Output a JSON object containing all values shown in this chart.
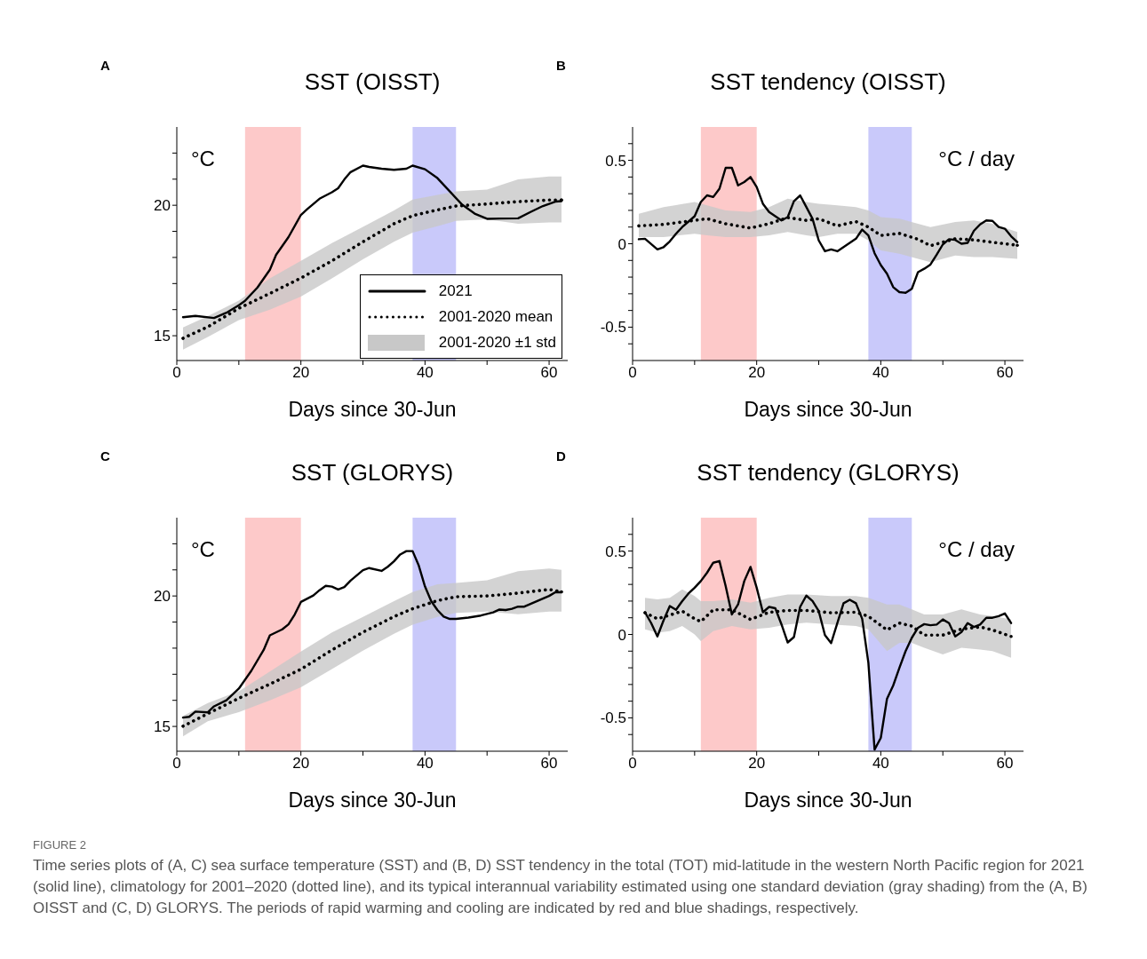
{
  "chart_data": [
    {
      "type": "line",
      "title": "SST (OISST)",
      "xlabel": "Days since 30-Jun",
      "annotations": [
        "A",
        "°C",
        "2001-2020 ±1 std"
      ],
      "legend": "bottom right",
      "xlim": [
        0,
        63
      ],
      "xticks": [
        0,
        {
          "value": 10,
          "label": null
        },
        20,
        {
          "value": 30,
          "label": null
        },
        40,
        {
          "value": 50,
          "label": null
        },
        60
      ],
      "ylim": [
        14.05,
        23
      ],
      "yticks": [
        15,
        {
          "value": 16,
          "label": null
        },
        {
          "value": 17,
          "label": null
        },
        {
          "value": 18,
          "label": null
        },
        {
          "value": 19,
          "label": null
        },
        20,
        {
          "value": 21,
          "label": null
        },
        {
          "value": 22,
          "label": null
        }
      ],
      "bands": [
        {
          "axis": "x",
          "from": 11,
          "to": 20,
          "color": "#fdc9c9"
        },
        {
          "axis": "x",
          "from": 38,
          "to": 45,
          "color": "#c9c9fa"
        }
      ],
      "series": [
        {
          "name": "2021",
          "color": "#000000",
          "line_style": "solid",
          "x": [
            1,
            3,
            6,
            8,
            10,
            11,
            13,
            15,
            16,
            18,
            20,
            21,
            23,
            25,
            26,
            27,
            28,
            30,
            31,
            33,
            35,
            37,
            38,
            40,
            42,
            44,
            46,
            48,
            50,
            52,
            55,
            57,
            59,
            61,
            62
          ],
          "values": [
            15.71,
            15.76,
            15.68,
            15.88,
            16.17,
            16.34,
            16.85,
            17.53,
            18.1,
            18.78,
            19.63,
            19.85,
            20.25,
            20.5,
            20.65,
            20.99,
            21.27,
            21.52,
            21.47,
            21.4,
            21.36,
            21.4,
            21.52,
            21.38,
            21.04,
            20.53,
            20.02,
            19.68,
            19.48,
            19.49,
            19.5,
            19.74,
            19.97,
            20.14,
            20.16
          ]
        },
        {
          "name": "2001-2020 mean",
          "color": "#000000",
          "line_style": "dotted",
          "x": [
            1,
            5,
            10,
            15,
            20,
            25,
            30,
            35,
            38,
            42,
            45,
            50,
            55,
            60,
            62
          ],
          "values": [
            14.9,
            15.34,
            16.05,
            16.62,
            17.21,
            17.87,
            18.6,
            19.29,
            19.6,
            19.82,
            19.97,
            20.05,
            20.14,
            20.2,
            20.2
          ],
          "lower": [
            14.47,
            14.95,
            15.6,
            16.0,
            16.5,
            17.2,
            17.93,
            18.6,
            18.95,
            19.2,
            19.4,
            19.46,
            19.29,
            19.34,
            19.34
          ],
          "upper": [
            15.32,
            15.75,
            16.35,
            17.2,
            17.87,
            18.55,
            19.17,
            19.8,
            20.22,
            20.4,
            20.53,
            20.6,
            20.99,
            21.1,
            21.1
          ]
        }
      ]
    },
    {
      "type": "line",
      "title": "SST tendency (OISST)",
      "xlabel": "Days since 30-Jun",
      "annotations": [
        "B",
        "°C / day"
      ],
      "xlim": [
        0,
        63
      ],
      "xticks": [
        0,
        {
          "value": 10,
          "label": null
        },
        20,
        {
          "value": 30,
          "label": null
        },
        40,
        {
          "value": 50,
          "label": null
        },
        60
      ],
      "ylim": [
        -0.7,
        0.7
      ],
      "yticks": [
        {
          "value": -0.6,
          "label": null
        },
        -0.5,
        {
          "value": -0.4,
          "label": null
        },
        {
          "value": -0.3,
          "label": null
        },
        {
          "value": -0.2,
          "label": null
        },
        {
          "value": -0.1,
          "label": null
        },
        0,
        {
          "value": 0.1,
          "label": null
        },
        {
          "value": 0.2,
          "label": null
        },
        {
          "value": 0.3,
          "label": null
        },
        {
          "value": 0.4,
          "label": null
        },
        0.5,
        {
          "value": 0.6,
          "label": null
        }
      ],
      "bands": [
        {
          "axis": "x",
          "from": 11,
          "to": 20,
          "color": "#fdc9c9"
        },
        {
          "axis": "x",
          "from": 38,
          "to": 45,
          "color": "#c9c9fa"
        }
      ],
      "series": [
        {
          "color": "#000000",
          "line_style": "solid",
          "x": [
            1,
            2,
            4,
            5,
            6,
            7,
            8,
            10,
            11,
            12,
            13,
            14,
            15,
            16,
            17,
            18,
            19,
            20,
            21,
            22,
            23,
            24,
            25,
            26,
            27,
            28,
            29,
            30,
            31,
            32,
            33,
            34,
            35,
            36,
            37,
            38,
            39,
            40,
            41,
            42,
            43,
            44,
            45,
            46,
            47,
            48,
            49,
            50,
            51,
            52,
            53,
            54,
            55,
            56,
            57,
            58,
            59,
            60,
            61,
            62
          ],
          "values": [
            0.027,
            0.03,
            -0.034,
            -0.02,
            0.014,
            0.06,
            0.1,
            0.165,
            0.25,
            0.29,
            0.28,
            0.33,
            0.455,
            0.455,
            0.35,
            0.37,
            0.4,
            0.34,
            0.24,
            0.19,
            0.165,
            0.14,
            0.16,
            0.255,
            0.29,
            0.22,
            0.15,
            0.02,
            -0.045,
            -0.034,
            -0.045,
            -0.02,
            0.005,
            0.03,
            0.085,
            0.05,
            -0.057,
            -0.128,
            -0.18,
            -0.26,
            -0.29,
            -0.294,
            -0.27,
            -0.17,
            -0.15,
            -0.125,
            -0.066,
            -0.004,
            0.027,
            0.023,
            0,
            0.005,
            0.077,
            0.116,
            0.14,
            0.137,
            0.1,
            0.09,
            0.045,
            0.01
          ]
        },
        {
          "color": "#000000",
          "line_style": "dotted",
          "x": [
            1,
            5,
            10,
            12,
            15,
            19,
            22,
            25,
            28,
            30,
            33,
            36,
            38,
            40,
            43,
            46,
            48,
            52,
            55,
            58,
            62
          ],
          "values": [
            0.107,
            0.116,
            0.14,
            0.15,
            0.12,
            0.094,
            0.12,
            0.157,
            0.14,
            0.15,
            0.107,
            0.133,
            0.1,
            0.05,
            0.062,
            0.027,
            -0.012,
            0.03,
            0.023,
            0.009,
            -0.009
          ],
          "lower": [
            0.04,
            0.04,
            0.06,
            0.05,
            0.04,
            0.04,
            0.05,
            0.07,
            0.05,
            0.04,
            0.06,
            0.06,
            0.02,
            -0.04,
            -0.06,
            -0.09,
            -0.11,
            -0.07,
            -0.08,
            -0.08,
            -0.09
          ],
          "upper": [
            0.18,
            0.22,
            0.25,
            0.23,
            0.2,
            0.19,
            0.22,
            0.27,
            0.25,
            0.24,
            0.23,
            0.22,
            0.2,
            0.16,
            0.15,
            0.12,
            0.1,
            0.13,
            0.14,
            0.12,
            0.07
          ]
        }
      ]
    },
    {
      "type": "line",
      "title": "SST (GLORYS)",
      "xlabel": "Days since 30-Jun",
      "annotations": [
        "C",
        "°C"
      ],
      "xlim": [
        0,
        63
      ],
      "xticks": [
        0,
        {
          "value": 10,
          "label": null
        },
        20,
        {
          "value": 30,
          "label": null
        },
        40,
        {
          "value": 50,
          "label": null
        },
        60
      ],
      "ylim": [
        14.05,
        23
      ],
      "yticks": [
        15,
        {
          "value": 16,
          "label": null
        },
        {
          "value": 17,
          "label": null
        },
        {
          "value": 18,
          "label": null
        },
        {
          "value": 19,
          "label": null
        },
        20,
        {
          "value": 21,
          "label": null
        },
        {
          "value": 22,
          "label": null
        }
      ],
      "bands": [
        {
          "axis": "x",
          "from": 11,
          "to": 20,
          "color": "#fdc9c9"
        },
        {
          "axis": "x",
          "from": 38,
          "to": 45,
          "color": "#c9c9fa"
        }
      ],
      "series": [
        {
          "color": "#000000",
          "line_style": "solid",
          "x": [
            1,
            2,
            3,
            5,
            6,
            8,
            10,
            12,
            14,
            15,
            17,
            18,
            19,
            20,
            22,
            23,
            24,
            25,
            26,
            27,
            28,
            30,
            31,
            33,
            34,
            35,
            36,
            37,
            38,
            39,
            40,
            41,
            42,
            43,
            44,
            45,
            47,
            49,
            51,
            52,
            53,
            54,
            55,
            56,
            58,
            60,
            61,
            62
          ],
          "values": [
            15.34,
            15.37,
            15.57,
            15.54,
            15.77,
            16.0,
            16.45,
            17.13,
            17.93,
            18.49,
            18.72,
            18.91,
            19.29,
            19.77,
            20.02,
            20.22,
            20.39,
            20.36,
            20.25,
            20.34,
            20.59,
            20.99,
            21.07,
            20.96,
            21.12,
            21.33,
            21.59,
            21.72,
            21.72,
            21.16,
            20.36,
            19.8,
            19.46,
            19.21,
            19.12,
            19.12,
            19.17,
            19.25,
            19.37,
            19.48,
            19.46,
            19.51,
            19.59,
            19.59,
            19.8,
            20.0,
            20.14,
            20.14
          ]
        },
        {
          "color": "#000000",
          "line_style": "dotted",
          "x": [
            1,
            5,
            10,
            15,
            20,
            25,
            30,
            35,
            38,
            42,
            45,
            50,
            55,
            60,
            62
          ],
          "values": [
            15.01,
            15.49,
            16.08,
            16.62,
            17.19,
            17.93,
            18.61,
            19.21,
            19.51,
            19.82,
            19.97,
            20.0,
            20.11,
            20.25,
            20.16
          ],
          "lower": [
            14.62,
            15.2,
            15.55,
            16.0,
            16.5,
            17.2,
            17.9,
            18.55,
            18.9,
            19.2,
            19.35,
            19.4,
            19.3,
            19.4,
            19.4
          ],
          "upper": [
            15.4,
            15.9,
            16.35,
            17.1,
            17.87,
            18.6,
            19.2,
            19.8,
            20.15,
            20.45,
            20.5,
            20.6,
            20.95,
            21.05,
            21.0
          ]
        }
      ]
    },
    {
      "type": "line",
      "title": "SST tendency (GLORYS)",
      "xlabel": "Days since 30-Jun",
      "annotations": [
        "D",
        "°C / day",
        "FIGURE 2",
        "Time series plots of (A, C) sea surface temperature (SST) and (B, D) SST tendency in the total (TOT) mid-latitude in the western North Pacific region for 2021 (solid line), climatology for 2001–2020 (dotted line), and its typical interannual variability estimated using one standard deviation (gray shading) from the (A, B) OISST and (C, D) GLORYS. The periods of rapid warming and cooling are indicated by red and blue shadings, respectively."
      ],
      "xlim": [
        0,
        63
      ],
      "xticks": [
        0,
        {
          "value": 10,
          "label": null
        },
        20,
        {
          "value": 30,
          "label": null
        },
        40,
        {
          "value": 50,
          "label": null
        },
        60
      ],
      "ylim": [
        -0.7,
        0.7
      ],
      "yticks": [
        {
          "value": -0.6,
          "label": null
        },
        -0.5,
        {
          "value": -0.4,
          "label": null
        },
        {
          "value": -0.3,
          "label": null
        },
        {
          "value": -0.2,
          "label": null
        },
        {
          "value": -0.1,
          "label": null
        },
        0,
        {
          "value": 0.1,
          "label": null
        },
        {
          "value": 0.2,
          "label": null
        },
        {
          "value": 0.3,
          "label": null
        },
        {
          "value": 0.4,
          "label": null
        },
        0.5,
        {
          "value": 0.6,
          "label": null
        }
      ],
      "bands": [
        {
          "axis": "x",
          "from": 11,
          "to": 20,
          "color": "#fdc9c9"
        },
        {
          "axis": "x",
          "from": 38,
          "to": 45,
          "color": "#c9c9fa"
        }
      ],
      "series": [
        {
          "color": "#000000",
          "line_style": "solid",
          "x": [
            2,
            3,
            4,
            5,
            6,
            7,
            8,
            9,
            10,
            11,
            12,
            13,
            14,
            15,
            16,
            17,
            18,
            19,
            20,
            21,
            22,
            23,
            24,
            25,
            26,
            27,
            28,
            29,
            30,
            31,
            32,
            33,
            34,
            35,
            36,
            37,
            38,
            39,
            40,
            41,
            42,
            43,
            44,
            45,
            46,
            47,
            48,
            49,
            50,
            51,
            52,
            53,
            54,
            55,
            56,
            57,
            58,
            59,
            60,
            61
          ],
          "values": [
            0.133,
            0.068,
            -0.012,
            0.085,
            0.17,
            0.148,
            0.2,
            0.245,
            0.28,
            0.32,
            0.37,
            0.43,
            0.44,
            0.29,
            0.12,
            0.18,
            0.32,
            0.405,
            0.28,
            0.133,
            0.165,
            0.157,
            0.06,
            -0.048,
            -0.016,
            0.165,
            0.233,
            0.2,
            0.14,
            -0.004,
            -0.052,
            0.068,
            0.187,
            0.208,
            0.187,
            0.094,
            -0.17,
            -0.69,
            -0.62,
            -0.386,
            -0.306,
            -0.2,
            -0.1,
            -0.02,
            0.04,
            0.062,
            0.055,
            0.059,
            0.09,
            0.068,
            -0.012,
            0.014,
            0.068,
            0.045,
            0.059,
            0.1,
            0.1,
            0.11,
            0.126,
            0.068
          ]
        },
        {
          "color": "#000000",
          "line_style": "dotted",
          "x": [
            2,
            4,
            6,
            8,
            10,
            11,
            13,
            16,
            19,
            22,
            25,
            28,
            32,
            36,
            38,
            41,
            43,
            45,
            47,
            50,
            53,
            56,
            58,
            61
          ],
          "values": [
            0.13,
            0.094,
            0.116,
            0.14,
            0.094,
            0.077,
            0.148,
            0.148,
            0.09,
            0.133,
            0.144,
            0.144,
            0.13,
            0.133,
            0.109,
            0.027,
            0.068,
            0.05,
            -0.004,
            -0.004,
            0.032,
            0.045,
            0.027,
            -0.012
          ],
          "lower": [
            0.03,
            0.01,
            0.02,
            0.05,
            0.0,
            -0.04,
            0.02,
            0.05,
            0.03,
            0.04,
            0.06,
            0.07,
            0.06,
            0.05,
            0.03,
            -0.1,
            -0.05,
            -0.05,
            -0.08,
            -0.12,
            -0.08,
            -0.09,
            -0.1,
            -0.14
          ],
          "upper": [
            0.22,
            0.21,
            0.22,
            0.27,
            0.23,
            0.2,
            0.2,
            0.21,
            0.19,
            0.22,
            0.24,
            0.24,
            0.23,
            0.23,
            0.22,
            0.18,
            0.18,
            0.15,
            0.12,
            0.12,
            0.15,
            0.12,
            0.11,
            0.09
          ]
        }
      ]
    }
  ]
}
